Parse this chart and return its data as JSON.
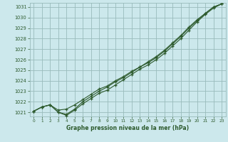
{
  "title": "Graphe pression niveau de la mer (hPa)",
  "bg_color": "#cce8ec",
  "grid_color": "#99bbbb",
  "line_color": "#2d5a2d",
  "xlim": [
    -0.5,
    23.5
  ],
  "ylim": [
    1020.6,
    1031.4
  ],
  "xticks": [
    0,
    1,
    2,
    3,
    4,
    5,
    6,
    7,
    8,
    9,
    10,
    11,
    12,
    13,
    14,
    15,
    16,
    17,
    18,
    19,
    20,
    21,
    22,
    23
  ],
  "yticks": [
    1021,
    1022,
    1023,
    1024,
    1025,
    1026,
    1027,
    1028,
    1029,
    1030,
    1031
  ],
  "series1_x": [
    0,
    1,
    2,
    3,
    4,
    5,
    6,
    7,
    8,
    9,
    10,
    11,
    12,
    13,
    14,
    15,
    16,
    17,
    18,
    19,
    20,
    21,
    22,
    23
  ],
  "series1_y": [
    1021.1,
    1021.5,
    1021.7,
    1021.0,
    1020.7,
    1021.2,
    1021.8,
    1022.3,
    1022.8,
    1023.1,
    1023.6,
    1024.1,
    1024.6,
    1025.1,
    1025.5,
    1026.0,
    1026.6,
    1027.3,
    1028.0,
    1028.8,
    1029.6,
    1030.3,
    1030.9,
    1031.3
  ],
  "series2_x": [
    0,
    1,
    2,
    3,
    4,
    5,
    6,
    7,
    8,
    9,
    10,
    11,
    12,
    13,
    14,
    15,
    16,
    17,
    18,
    19,
    20,
    21,
    22,
    23
  ],
  "series2_y": [
    1021.1,
    1021.5,
    1021.7,
    1021.0,
    1020.8,
    1021.3,
    1022.0,
    1022.5,
    1023.0,
    1023.4,
    1023.9,
    1024.3,
    1024.8,
    1025.3,
    1025.7,
    1026.2,
    1026.8,
    1027.5,
    1028.2,
    1029.0,
    1029.7,
    1030.4,
    1031.0,
    1031.3
  ],
  "series3_x": [
    0,
    1,
    2,
    3,
    4,
    5,
    6,
    7,
    8,
    9,
    10,
    11,
    12,
    13,
    14,
    15,
    16,
    17,
    18,
    19,
    20,
    21,
    22,
    23
  ],
  "series3_y": [
    1021.1,
    1021.5,
    1021.7,
    1021.2,
    1021.3,
    1021.7,
    1022.2,
    1022.7,
    1023.2,
    1023.5,
    1024.0,
    1024.4,
    1024.9,
    1025.3,
    1025.8,
    1026.3,
    1026.9,
    1027.6,
    1028.3,
    1029.1,
    1029.8,
    1030.4,
    1031.0,
    1031.3
  ]
}
